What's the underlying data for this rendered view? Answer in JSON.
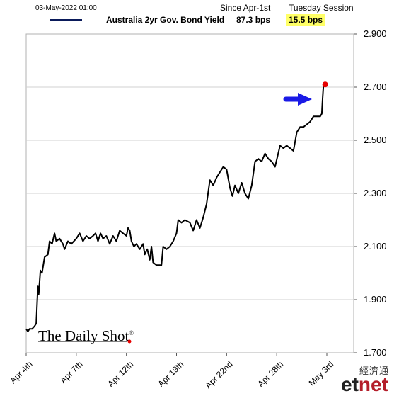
{
  "header": {
    "timestamp": "03-May-2022 01:00",
    "col1_label": "Since Apr-1st",
    "col2_label": "Tuesday Session",
    "series_name": "Australia 2yr Gov. Bond Yield",
    "since_value": "87.3 bps",
    "session_value": "15.5 bps"
  },
  "logo": {
    "text": "The Daily Shot",
    "mark": "®"
  },
  "watermark": {
    "chinese": "經濟通",
    "brand_prefix": "et",
    "brand_suffix": "net"
  },
  "colors": {
    "line": "#000000",
    "legend_line": "#0a1a5a",
    "arrow": "#1a1ae6",
    "endpoint": "#e60000",
    "highlight": "#ffff66"
  },
  "chart_data": {
    "type": "line",
    "title": "",
    "xlabel": "",
    "ylabel": "",
    "ylim": [
      1.7,
      2.9
    ],
    "yticks": [
      1.7,
      1.9,
      2.1,
      2.3,
      2.5,
      2.7,
      2.9
    ],
    "ytick_labels": [
      "1.700",
      "1.900",
      "2.100",
      "2.300",
      "2.500",
      "2.700",
      "2.900"
    ],
    "xticks": [
      {
        "label": "Apr 4th",
        "index": 0
      },
      {
        "label": "Apr 7th",
        "index": 3
      },
      {
        "label": "Apr 12th",
        "index": 6
      },
      {
        "label": "Apr 19th",
        "index": 9
      },
      {
        "label": "Apr 22nd",
        "index": 12
      },
      {
        "label": "Apr 28th",
        "index": 15
      },
      {
        "label": "May 3rd",
        "index": 18
      }
    ],
    "x_max_index": 19.4,
    "grid": true,
    "legend": "top",
    "series": [
      {
        "name": "Australia 2yr Gov. Bond Yield",
        "points": [
          [
            0.0,
            1.79
          ],
          [
            0.1,
            1.78
          ],
          [
            0.2,
            1.79
          ],
          [
            0.35,
            1.79
          ],
          [
            0.5,
            1.8
          ],
          [
            0.6,
            1.81
          ],
          [
            0.7,
            1.95
          ],
          [
            0.75,
            1.92
          ],
          [
            0.85,
            2.01
          ],
          [
            0.95,
            2.0
          ],
          [
            1.1,
            2.06
          ],
          [
            1.3,
            2.07
          ],
          [
            1.4,
            2.12
          ],
          [
            1.55,
            2.11
          ],
          [
            1.7,
            2.15
          ],
          [
            1.8,
            2.12
          ],
          [
            2.0,
            2.13
          ],
          [
            2.2,
            2.11
          ],
          [
            2.3,
            2.09
          ],
          [
            2.5,
            2.12
          ],
          [
            2.7,
            2.11
          ],
          [
            3.0,
            2.13
          ],
          [
            3.2,
            2.15
          ],
          [
            3.4,
            2.12
          ],
          [
            3.6,
            2.14
          ],
          [
            3.8,
            2.13
          ],
          [
            4.0,
            2.14
          ],
          [
            4.15,
            2.15
          ],
          [
            4.3,
            2.12
          ],
          [
            4.45,
            2.15
          ],
          [
            4.6,
            2.13
          ],
          [
            4.8,
            2.14
          ],
          [
            5.0,
            2.11
          ],
          [
            5.2,
            2.14
          ],
          [
            5.4,
            2.12
          ],
          [
            5.6,
            2.16
          ],
          [
            5.8,
            2.15
          ],
          [
            6.0,
            2.14
          ],
          [
            6.1,
            2.17
          ],
          [
            6.2,
            2.16
          ],
          [
            6.3,
            2.12
          ],
          [
            6.45,
            2.1
          ],
          [
            6.6,
            2.11
          ],
          [
            6.8,
            2.09
          ],
          [
            7.0,
            2.11
          ],
          [
            7.1,
            2.07
          ],
          [
            7.25,
            2.09
          ],
          [
            7.4,
            2.05
          ],
          [
            7.5,
            2.1
          ],
          [
            7.6,
            2.04
          ],
          [
            7.8,
            2.03
          ],
          [
            8.1,
            2.03
          ],
          [
            8.2,
            2.1
          ],
          [
            8.4,
            2.09
          ],
          [
            8.6,
            2.1
          ],
          [
            8.8,
            2.12
          ],
          [
            9.0,
            2.15
          ],
          [
            9.1,
            2.2
          ],
          [
            9.3,
            2.19
          ],
          [
            9.5,
            2.2
          ],
          [
            9.8,
            2.19
          ],
          [
            10.0,
            2.16
          ],
          [
            10.2,
            2.2
          ],
          [
            10.4,
            2.17
          ],
          [
            10.6,
            2.21
          ],
          [
            10.8,
            2.26
          ],
          [
            11.0,
            2.35
          ],
          [
            11.2,
            2.33
          ],
          [
            11.4,
            2.36
          ],
          [
            11.6,
            2.38
          ],
          [
            11.8,
            2.4
          ],
          [
            12.0,
            2.39
          ],
          [
            12.2,
            2.32
          ],
          [
            12.35,
            2.29
          ],
          [
            12.5,
            2.33
          ],
          [
            12.7,
            2.3
          ],
          [
            12.9,
            2.34
          ],
          [
            13.1,
            2.3
          ],
          [
            13.3,
            2.28
          ],
          [
            13.5,
            2.33
          ],
          [
            13.7,
            2.42
          ],
          [
            13.9,
            2.43
          ],
          [
            14.1,
            2.42
          ],
          [
            14.3,
            2.45
          ],
          [
            14.5,
            2.43
          ],
          [
            14.7,
            2.42
          ],
          [
            14.9,
            2.4
          ],
          [
            15.2,
            2.48
          ],
          [
            15.4,
            2.47
          ],
          [
            15.6,
            2.48
          ],
          [
            15.8,
            2.47
          ],
          [
            16.0,
            2.46
          ],
          [
            16.2,
            2.53
          ],
          [
            16.4,
            2.55
          ],
          [
            16.6,
            2.55
          ],
          [
            16.8,
            2.56
          ],
          [
            17.0,
            2.57
          ],
          [
            17.2,
            2.59
          ],
          [
            17.4,
            2.59
          ],
          [
            17.6,
            2.59
          ],
          [
            17.7,
            2.6
          ],
          [
            17.75,
            2.66
          ],
          [
            17.8,
            2.71
          ],
          [
            17.9,
            2.71
          ]
        ]
      }
    ]
  }
}
